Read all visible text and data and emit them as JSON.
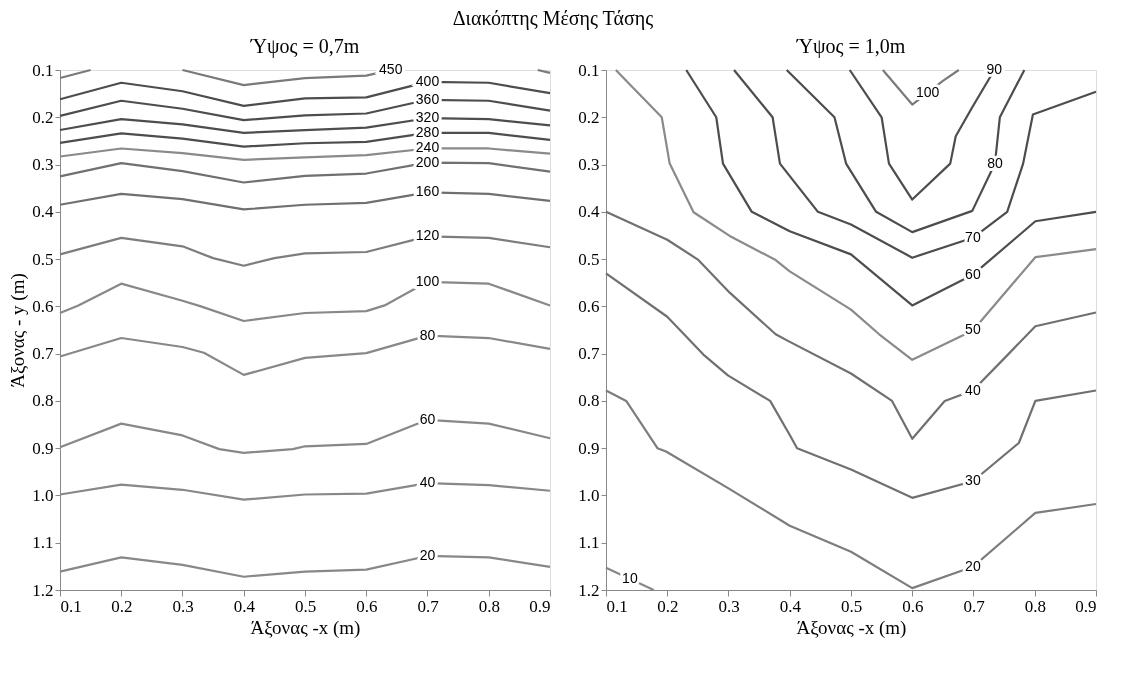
{
  "chart_data": [
    {
      "type": "line",
      "title": "Ύψος = 0,7m",
      "annotations": [
        "Διακόπτης Μέσης Τάσης"
      ],
      "xlabel": "Άξονας -x (m)",
      "ylabel": "Άξονας - y (m)",
      "xlim": [
        0.1,
        0.9
      ],
      "ylim": [
        1.2,
        0.1
      ],
      "xticks": [
        0.1,
        0.2,
        0.3,
        0.4,
        0.5,
        0.6,
        0.7,
        0.8,
        0.9
      ],
      "yticks": [
        0.1,
        0.2,
        0.3,
        0.4,
        0.5,
        0.6,
        0.7,
        0.8,
        0.9,
        {
          "value": 1,
          "label": "1.0"
        },
        1.1,
        1.2
      ],
      "grid": false,
      "legend": false,
      "marker": "none",
      "line_style": "solid",
      "series": [
        {
          "name": "450",
          "color": "#7a7a7a",
          "x": [
            0.1,
            0.15,
            null,
            0.3,
            0.4,
            0.5,
            0.6,
            0.64,
            null,
            0.88,
            0.9
          ],
          "values": [
            0.117,
            0.1,
            null,
            0.1,
            0.132,
            0.117,
            0.112,
            0.1,
            null,
            0.1,
            0.106
          ]
        },
        {
          "name": "400",
          "color": "#4d4d4d",
          "x": [
            0.1,
            0.2,
            0.3,
            0.4,
            0.5,
            0.6,
            0.7,
            0.8,
            0.9
          ],
          "values": [
            0.162,
            0.127,
            0.145,
            0.176,
            0.16,
            0.158,
            0.125,
            0.127,
            0.149
          ]
        },
        {
          "name": "360",
          "color": "#4d4d4d",
          "x": [
            0.1,
            0.2,
            0.3,
            0.4,
            0.5,
            0.6,
            0.7,
            0.8,
            0.9
          ],
          "values": [
            0.197,
            0.165,
            0.182,
            0.206,
            0.196,
            0.192,
            0.163,
            0.165,
            0.186
          ]
        },
        {
          "name": "320",
          "color": "#4d4d4d",
          "x": [
            0.1,
            0.2,
            0.3,
            0.4,
            0.5,
            0.6,
            0.7,
            0.8,
            0.9
          ],
          "values": [
            0.227,
            0.204,
            0.215,
            0.233,
            0.227,
            0.222,
            0.202,
            0.204,
            0.217
          ]
        },
        {
          "name": "280",
          "color": "#4d4d4d",
          "x": [
            0.1,
            0.2,
            0.3,
            0.4,
            0.5,
            0.6,
            0.7,
            0.8,
            0.9
          ],
          "values": [
            0.254,
            0.234,
            0.245,
            0.262,
            0.255,
            0.252,
            0.233,
            0.233,
            0.248
          ]
        },
        {
          "name": "240",
          "color": "#8a8a8a",
          "x": [
            0.1,
            0.2,
            0.3,
            0.4,
            0.5,
            0.6,
            0.7,
            0.8,
            0.9
          ],
          "values": [
            0.283,
            0.266,
            0.276,
            0.29,
            0.285,
            0.28,
            0.266,
            0.266,
            0.277
          ]
        },
        {
          "name": "200",
          "color": "#707070",
          "x": [
            0.1,
            0.2,
            0.3,
            0.4,
            0.5,
            0.6,
            0.7,
            0.8,
            0.9
          ],
          "values": [
            0.325,
            0.297,
            0.314,
            0.338,
            0.324,
            0.319,
            0.296,
            0.297,
            0.315
          ]
        },
        {
          "name": "160",
          "color": "#707070",
          "x": [
            0.1,
            0.2,
            0.3,
            0.4,
            0.5,
            0.6,
            0.7,
            0.8,
            0.9
          ],
          "values": [
            0.385,
            0.362,
            0.373,
            0.395,
            0.385,
            0.381,
            0.359,
            0.362,
            0.377
          ]
        },
        {
          "name": "120",
          "color": "#7d7d7d",
          "x": [
            0.1,
            0.2,
            0.3,
            0.35,
            0.4,
            0.45,
            0.5,
            0.6,
            0.7,
            0.8,
            0.9
          ],
          "values": [
            0.49,
            0.455,
            0.473,
            0.498,
            0.514,
            0.498,
            0.488,
            0.485,
            0.452,
            0.455,
            0.475
          ]
        },
        {
          "name": "100",
          "color": "#888888",
          "x": [
            0.1,
            0.13,
            0.2,
            0.3,
            0.33,
            0.4,
            0.5,
            0.6,
            0.63,
            0.7,
            0.8,
            0.9
          ],
          "values": [
            0.614,
            0.598,
            0.552,
            0.588,
            0.6,
            0.631,
            0.614,
            0.61,
            0.598,
            0.548,
            0.552,
            0.598
          ]
        },
        {
          "name": "80",
          "color": "#888888",
          "x": [
            0.1,
            0.2,
            0.3,
            0.335,
            0.4,
            0.5,
            0.6,
            0.7,
            0.8,
            0.9
          ],
          "values": [
            0.706,
            0.667,
            0.686,
            0.698,
            0.745,
            0.709,
            0.699,
            0.662,
            0.667,
            0.69
          ]
        },
        {
          "name": "60",
          "color": "#888888",
          "x": [
            0.1,
            0.2,
            0.3,
            0.36,
            0.4,
            0.48,
            0.5,
            0.6,
            0.7,
            0.8,
            0.9
          ],
          "values": [
            0.898,
            0.848,
            0.873,
            0.902,
            0.91,
            0.902,
            0.896,
            0.891,
            0.84,
            0.848,
            0.879
          ]
        },
        {
          "name": "40",
          "color": "#888888",
          "x": [
            0.1,
            0.2,
            0.3,
            0.4,
            0.5,
            0.6,
            0.7,
            0.8,
            0.9
          ],
          "values": [
            0.998,
            0.977,
            0.988,
            1.009,
            0.998,
            0.996,
            0.974,
            0.978,
            0.99
          ]
        },
        {
          "name": "20",
          "color": "#888888",
          "x": [
            0.1,
            0.2,
            0.3,
            0.4,
            0.5,
            0.6,
            0.7,
            0.8,
            0.9
          ],
          "values": [
            1.161,
            1.131,
            1.147,
            1.172,
            1.161,
            1.157,
            1.128,
            1.131,
            1.151
          ]
        }
      ]
    },
    {
      "type": "line",
      "title": "Ύψος = 1,0m",
      "xlabel": "Άξονας -x (m)",
      "xlim": [
        0.1,
        0.9
      ],
      "ylim": [
        1.2,
        0.1
      ],
      "xticks": [
        0.1,
        0.2,
        0.3,
        0.4,
        0.5,
        0.6,
        0.7,
        0.8,
        0.9
      ],
      "yticks": [
        0.1,
        0.2,
        0.3,
        0.4,
        0.5,
        0.6,
        0.7,
        0.8,
        0.9,
        {
          "value": 1,
          "label": "1.0"
        },
        1.1,
        1.2
      ],
      "grid": false,
      "legend": false,
      "marker": "none",
      "line_style": "solid",
      "series": [
        {
          "name": "100",
          "color": "#888888",
          "x": [
            0.552,
            0.6,
            0.65,
            0.676
          ],
          "values": [
            0.1,
            0.173,
            0.123,
            0.1
          ]
        },
        {
          "name": "90",
          "color": "#4d4d4d",
          "x": [
            0.498,
            0.55,
            0.562,
            0.6,
            0.662,
            0.671,
            0.697,
            0.734
          ],
          "values": [
            0.1,
            0.2,
            0.298,
            0.374,
            0.298,
            0.24,
            0.181,
            0.1
          ]
        },
        {
          "name": "80",
          "color": "#4d4d4d",
          "x": [
            0.395,
            0.473,
            0.492,
            0.541,
            0.6,
            0.698,
            0.735,
            0.743,
            0.783
          ],
          "values": [
            0.1,
            0.2,
            0.298,
            0.4,
            0.443,
            0.398,
            0.298,
            0.2,
            0.1
          ]
        },
        {
          "name": "70",
          "color": "#4d4d4d",
          "x": [
            0.309,
            0.372,
            0.384,
            0.446,
            0.5,
            0.6,
            0.699,
            0.755,
            0.781,
            0.797,
            0.9
          ],
          "values": [
            0.1,
            0.2,
            0.298,
            0.4,
            0.427,
            0.497,
            0.455,
            0.4,
            0.298,
            0.194,
            0.146
          ]
        },
        {
          "name": "60",
          "color": "#555555",
          "x": [
            0.231,
            0.28,
            0.291,
            0.338,
            0.4,
            0.5,
            0.6,
            0.699,
            0.801,
            0.9
          ],
          "values": [
            0.1,
            0.2,
            0.298,
            0.4,
            0.441,
            0.49,
            0.598,
            0.533,
            0.42,
            0.4
          ]
        },
        {
          "name": "50",
          "color": "#808080",
          "x": [
            0.116,
            0.191,
            0.204,
            0.243,
            0.302,
            0.377,
            0.4,
            0.5,
            0.546,
            0.6,
            0.699,
            0.801,
            0.9
          ],
          "values": [
            0.1,
            0.2,
            0.298,
            0.401,
            0.451,
            0.502,
            0.526,
            0.607,
            0.659,
            0.713,
            0.651,
            0.496,
            0.479
          ]
        },
        {
          "name": "40",
          "color": "#6e6e6e",
          "x": [
            0.1,
            0.2,
            0.25,
            0.302,
            0.377,
            0.397,
            0.5,
            0.567,
            0.6,
            0.653,
            0.699,
            0.751,
            0.801,
            0.9
          ],
          "values": [
            0.4,
            0.459,
            0.501,
            0.571,
            0.659,
            0.673,
            0.742,
            0.8,
            0.88,
            0.8,
            0.778,
            0.709,
            0.642,
            0.613
          ]
        },
        {
          "name": "30",
          "color": "#7a7a7a",
          "x": [
            0.1,
            0.2,
            0.259,
            0.299,
            0.368,
            0.4,
            0.412,
            0.5,
            0.6,
            0.699,
            0.774,
            0.801,
            0.9
          ],
          "values": [
            0.53,
            0.622,
            0.702,
            0.746,
            0.8,
            0.872,
            0.9,
            0.945,
            1.005,
            0.97,
            0.889,
            0.8,
            0.778
          ]
        },
        {
          "name": "20",
          "color": "#8c8c8c",
          "x": [
            0.1,
            0.133,
            0.184,
            0.198,
            0.3,
            0.4,
            0.5,
            0.6,
            0.699,
            0.801,
            0.9
          ],
          "values": [
            0.778,
            0.8,
            0.9,
            0.907,
            0.985,
            1.064,
            1.119,
            1.196,
            1.151,
            1.037,
            1.018
          ]
        },
        {
          "name": "10",
          "color": "#888888",
          "x": [
            0.1,
            0.178
          ],
          "values": [
            1.153,
            1.2
          ]
        }
      ]
    }
  ]
}
